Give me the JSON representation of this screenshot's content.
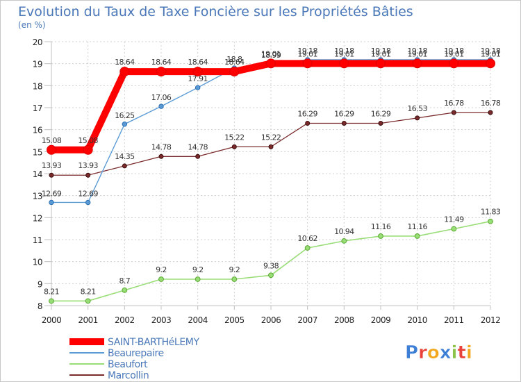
{
  "chart_data": {
    "type": "line",
    "title": "Evolution du Taux de Taxe Foncière sur les Propriétés Bâties",
    "subtitle": "(en %)",
    "xlabel": "",
    "ylabel": "",
    "ylim": [
      8,
      20
    ],
    "yticks": [
      "8",
      "9",
      "10",
      "11",
      "12",
      "13",
      "14",
      "15",
      "16",
      "17",
      "18",
      "19",
      "20"
    ],
    "categories": [
      "2000",
      "2001",
      "2002",
      "2003",
      "2004",
      "2005",
      "2006",
      "2007",
      "2008",
      "2009",
      "2010",
      "2011",
      "2012"
    ],
    "series": [
      {
        "name": "SAINT-BARTHéLEMY",
        "color": "#ff0000",
        "values": [
          15.08,
          15.08,
          18.64,
          18.64,
          18.64,
          18.64,
          19.01,
          19.01,
          19.01,
          19.01,
          19.01,
          19.01,
          19.01
        ],
        "labels": [
          "15.08",
          "15.08",
          "18.64",
          "18.64",
          "18.64",
          "18.64",
          "19.01",
          "19.01",
          "19.01",
          "19.01",
          "19.01",
          "19.01",
          "19.01"
        ]
      },
      {
        "name": "Beaurepaire",
        "color": "#5b9bd5",
        "values": [
          12.69,
          12.69,
          16.25,
          17.06,
          17.91,
          18.8,
          18.99,
          19.18,
          19.18,
          19.18,
          19.18,
          19.18,
          19.18
        ],
        "labels": [
          "12.69",
          "12.69",
          "16.25",
          "17.06",
          "17.91",
          "18.8",
          "18.99",
          "19.18",
          "19.18",
          "19.18",
          "19.18",
          "19.18",
          "19.18"
        ]
      },
      {
        "name": "Beaufort",
        "color": "#99dd77",
        "values": [
          8.21,
          8.21,
          8.7,
          9.2,
          9.2,
          9.2,
          9.38,
          10.62,
          10.94,
          11.16,
          11.16,
          11.49,
          11.83
        ],
        "labels": [
          "8.21",
          "8.21",
          "8.7",
          "9.2",
          "9.2",
          "9.2",
          "9.38",
          "10.62",
          "10.94",
          "11.16",
          "11.16",
          "11.49",
          "11.83"
        ]
      },
      {
        "name": "Marcollin",
        "color": "#7a2a2a",
        "values": [
          13.93,
          13.93,
          14.35,
          14.78,
          14.78,
          15.22,
          15.22,
          16.29,
          16.29,
          16.29,
          16.53,
          16.78,
          16.78
        ],
        "labels": [
          "13.93",
          "13.93",
          "14.35",
          "14.78",
          "14.78",
          "15.22",
          "15.22",
          "16.29",
          "16.29",
          "16.29",
          "16.53",
          "16.78",
          "16.78"
        ]
      }
    ],
    "legend_position": "bottom-left",
    "grid": true
  },
  "logo": {
    "text": "Proxiti",
    "colors": [
      "#3d7fd6",
      "#e8423a",
      "#f2a81d",
      "#3d7fd6",
      "#8bc34a",
      "#e8423a",
      "#f2a81d"
    ]
  }
}
